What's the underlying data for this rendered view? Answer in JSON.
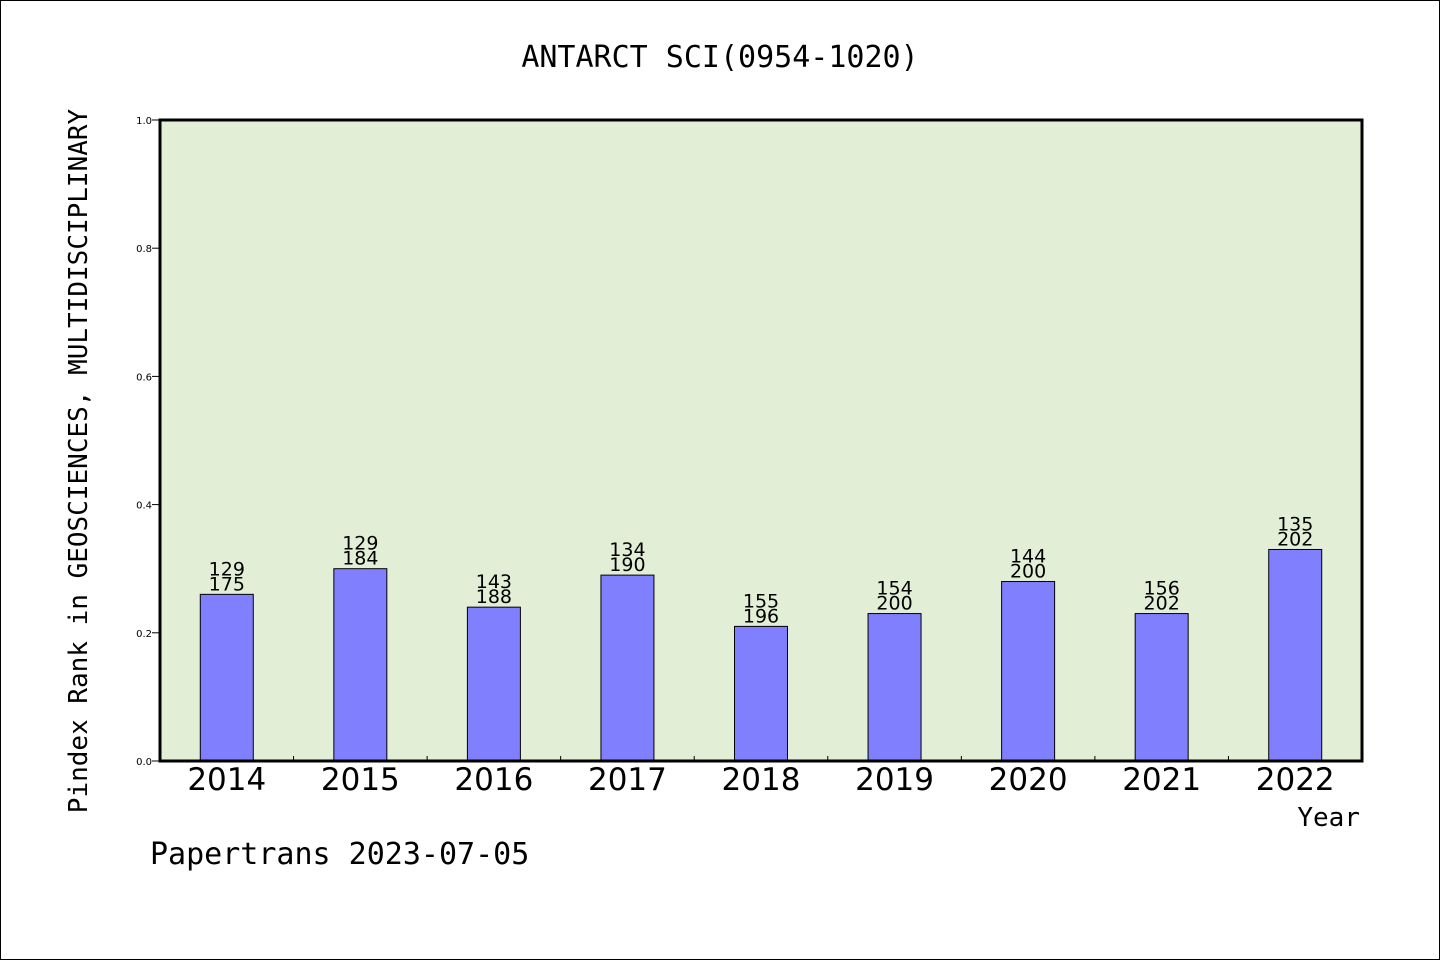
{
  "chart_data": {
    "type": "bar",
    "title": "ANTARCT SCI(0954-1020)",
    "xlabel": "Year",
    "ylabel": "Pindex Rank in GEOSCIENCES, MULTIDISCIPLINARY",
    "footer": "Papertrans 2023-07-05",
    "categories": [
      "2014",
      "2015",
      "2016",
      "2017",
      "2018",
      "2019",
      "2020",
      "2021",
      "2022"
    ],
    "values": [
      0.26,
      0.3,
      0.24,
      0.29,
      0.21,
      0.23,
      0.28,
      0.23,
      0.33
    ],
    "rank_labels": [
      "129",
      "129",
      "143",
      "134",
      "155",
      "154",
      "144",
      "156",
      "135"
    ],
    "total_labels": [
      "175",
      "184",
      "188",
      "190",
      "196",
      "200",
      "200",
      "202",
      "202"
    ],
    "ylim": [
      0,
      1.0
    ],
    "yticks": [
      "0.0",
      "0.2",
      "0.4",
      "0.6",
      "0.8",
      "1.0"
    ],
    "grid": false,
    "colors": {
      "plot_background": "#e2efd6",
      "bar_fill": "#8080ff",
      "axis": "#000000"
    }
  }
}
